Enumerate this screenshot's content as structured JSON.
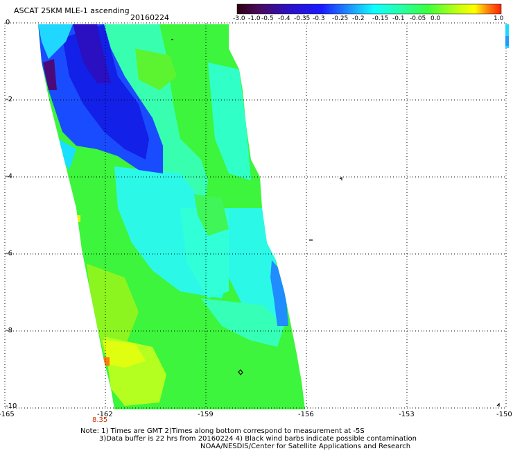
{
  "header": {
    "title": "ASCAT 25KM MLE-1 ascending",
    "date": "20160224"
  },
  "colorbar": {
    "labels": [
      "-3.0",
      "-1.0",
      "-0.5",
      "-0.4",
      "-0.35",
      "-0.3",
      "-0.25",
      "-0.2",
      "-0.15",
      "-0.1",
      "-0.05",
      "0.0",
      "1.0"
    ],
    "colors": [
      "#2b0010",
      "#4a0a5a",
      "#5a18c8",
      "#1a1aff",
      "#1f6fff",
      "#10b4ff",
      "#10ffff",
      "#28ffa8",
      "#3aff40",
      "#9aff10",
      "#ffff00",
      "#ff7010",
      "#ff2000"
    ]
  },
  "axes": {
    "x_ticks": [
      "-165",
      "-162",
      "-159",
      "-156",
      "-153",
      "-150"
    ],
    "y_ticks": [
      "0",
      "-2",
      "-4",
      "-6",
      "-8",
      "-10"
    ],
    "time_label": "8.35",
    "time_label_color": "#c83000"
  },
  "notes": {
    "line1": "Note: 1) Times are GMT 2)Times along bottom correspond to measurement at -5S",
    "line2": "3)Data buffer is 22 hrs from 20160224 4) Black wind barbs indicate possible contamination",
    "line3": "NOAA/NESDIS/Center for Satellite Applications and Research"
  }
}
